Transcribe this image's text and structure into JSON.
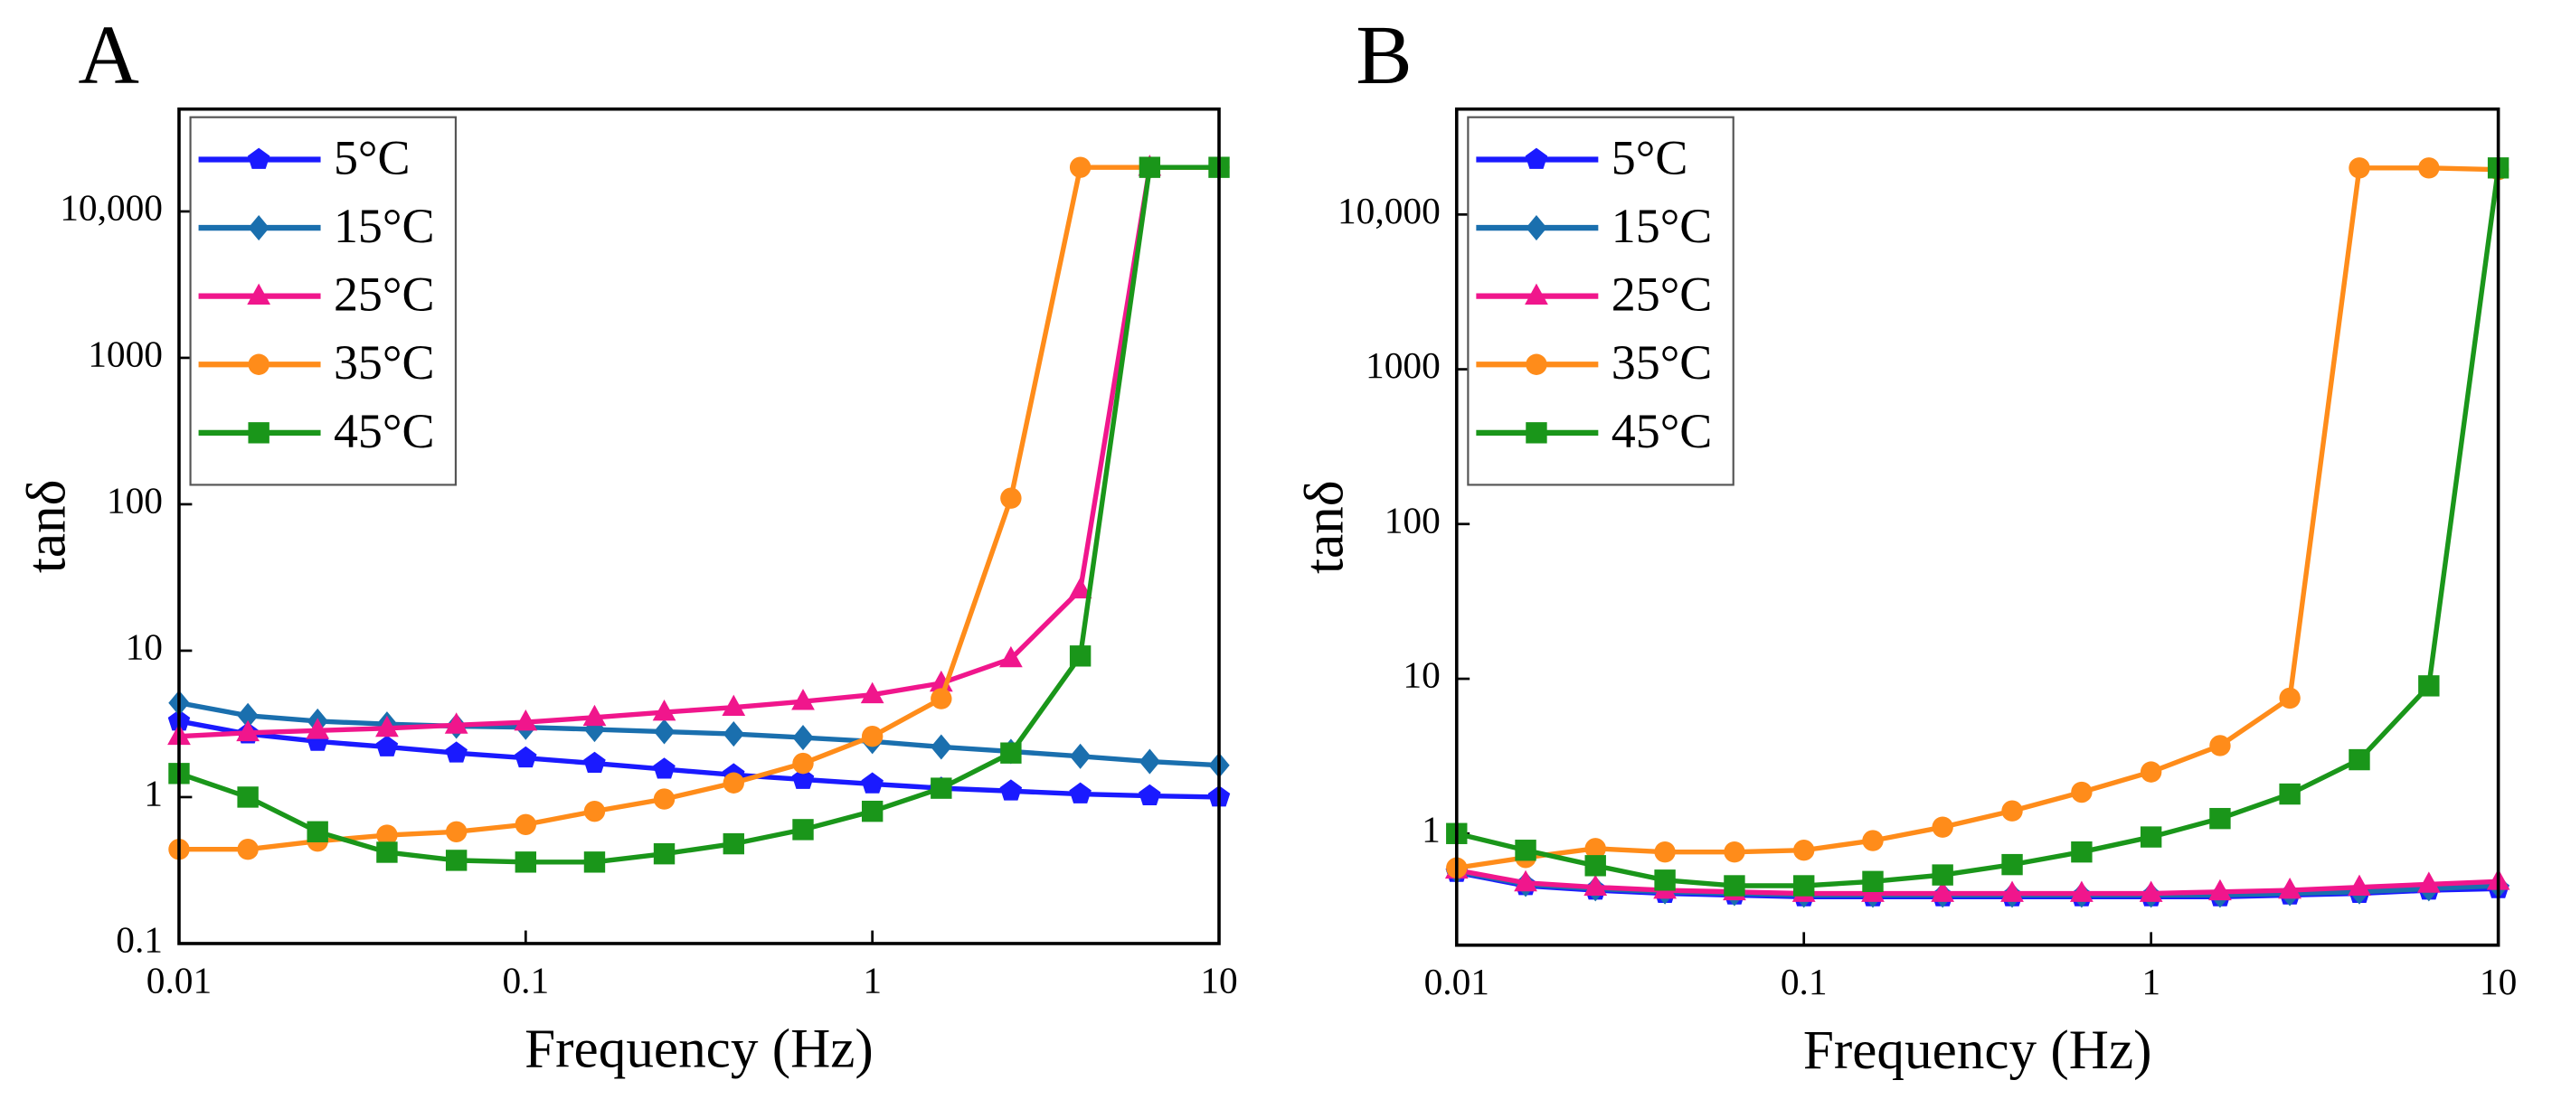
{
  "chart_data": [
    {
      "type": "line",
      "panel_label": "A",
      "xlabel": "Frequency (Hz)",
      "ylabel": "tanδ",
      "xscale": "log",
      "yscale": "log",
      "legend": "upper left",
      "x": [
        0.01,
        0.0158,
        0.0251,
        0.0398,
        0.0631,
        0.1,
        0.158,
        0.251,
        0.398,
        0.631,
        1,
        1.58,
        2.51,
        3.98,
        6.31,
        10
      ],
      "xlim": [
        0.01,
        10
      ],
      "xticks": [
        0.01,
        0.1,
        1,
        10
      ],
      "ylim": [
        0.1,
        50000
      ],
      "yticks": [
        0.1,
        1,
        10,
        100,
        1000,
        {
          "value": 10000,
          "label": "10,000"
        }
      ],
      "series": [
        {
          "name": "5°C",
          "color": "#1a1aff",
          "marker": "pentagon",
          "values": [
            3.3,
            2.7,
            2.4,
            2.2,
            2.0,
            1.85,
            1.7,
            1.55,
            1.42,
            1.32,
            1.23,
            1.15,
            1.1,
            1.05,
            1.02,
            1.0
          ]
        },
        {
          "name": "15°C",
          "color": "#1a6fae",
          "marker": "diamond",
          "values": [
            4.4,
            3.6,
            3.3,
            3.15,
            3.05,
            3.0,
            2.9,
            2.8,
            2.7,
            2.55,
            2.4,
            2.2,
            2.05,
            1.9,
            1.75,
            1.65
          ]
        },
        {
          "name": "25°C",
          "color": "#f0168c",
          "marker": "triangle",
          "values": [
            2.6,
            2.75,
            2.85,
            2.95,
            3.1,
            3.25,
            3.5,
            3.8,
            4.1,
            4.5,
            5.0,
            6.0,
            8.8,
            26,
            20000,
            null
          ]
        },
        {
          "name": "35°C",
          "color": "#ff8c1a",
          "marker": "circle",
          "values": [
            0.44,
            0.44,
            0.5,
            0.55,
            0.58,
            0.65,
            0.8,
            0.97,
            1.25,
            1.7,
            2.6,
            4.7,
            110,
            20000,
            20000,
            20000
          ]
        },
        {
          "name": "45°C",
          "color": "#1a961a",
          "marker": "square",
          "values": [
            1.45,
            1.0,
            0.58,
            0.42,
            0.37,
            0.36,
            0.36,
            0.41,
            0.48,
            0.6,
            0.8,
            1.15,
            2.0,
            9.2,
            20000,
            20000
          ]
        }
      ]
    },
    {
      "type": "line",
      "panel_label": "B",
      "xlabel": "Frequency (Hz)",
      "ylabel": "tanδ",
      "xscale": "log",
      "yscale": "log",
      "legend": "upper left",
      "x": [
        0.01,
        0.0158,
        0.0251,
        0.0398,
        0.0631,
        0.1,
        0.158,
        0.251,
        0.398,
        0.631,
        1,
        1.58,
        2.51,
        3.98,
        6.31,
        10
      ],
      "xlim": [
        0.01,
        10
      ],
      "xticks": [
        0.01,
        0.1,
        1,
        10
      ],
      "ylim": [
        0.19,
        48000
      ],
      "yticks": [
        1,
        10,
        100,
        1000,
        {
          "value": 10000,
          "label": "10,000"
        }
      ],
      "series": [
        {
          "name": "5°C",
          "color": "#1a1aff",
          "marker": "pentagon",
          "values": [
            0.56,
            0.46,
            0.43,
            0.41,
            0.4,
            0.39,
            0.39,
            0.39,
            0.39,
            0.39,
            0.39,
            0.39,
            0.4,
            0.41,
            0.43,
            0.44
          ]
        },
        {
          "name": "15°C",
          "color": "#1a6fae",
          "marker": "diamond",
          "values": [
            0.57,
            0.47,
            0.44,
            0.42,
            0.41,
            0.4,
            0.4,
            0.4,
            0.4,
            0.4,
            0.4,
            0.4,
            0.41,
            0.42,
            0.44,
            0.46
          ]
        },
        {
          "name": "25°C",
          "color": "#f0168c",
          "marker": "triangle",
          "values": [
            0.58,
            0.48,
            0.45,
            0.43,
            0.42,
            0.41,
            0.41,
            0.41,
            0.41,
            0.41,
            0.41,
            0.42,
            0.43,
            0.45,
            0.47,
            0.49
          ]
        },
        {
          "name": "35°C",
          "color": "#ff8c1a",
          "marker": "circle",
          "values": [
            0.6,
            0.7,
            0.8,
            0.76,
            0.76,
            0.78,
            0.9,
            1.1,
            1.4,
            1.85,
            2.5,
            3.7,
            7.5,
            20000,
            20000,
            19500
          ]
        },
        {
          "name": "45°C",
          "color": "#1a961a",
          "marker": "square",
          "values": [
            1.0,
            0.78,
            0.62,
            0.5,
            0.46,
            0.46,
            0.49,
            0.54,
            0.63,
            0.76,
            0.95,
            1.25,
            1.8,
            3.0,
            9.0,
            20000
          ]
        }
      ]
    }
  ]
}
